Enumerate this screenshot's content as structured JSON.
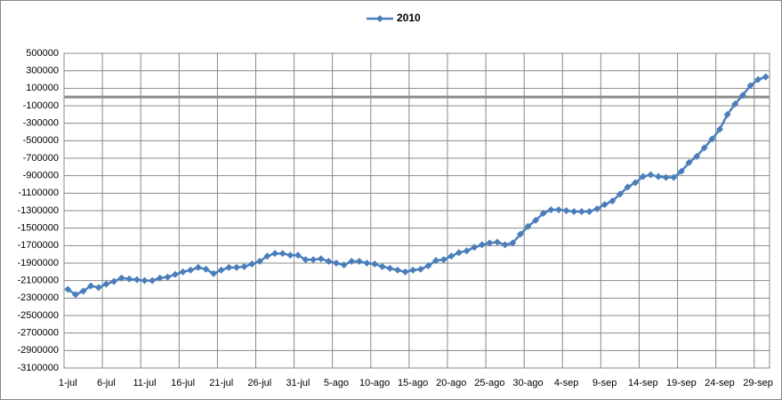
{
  "chart_data": {
    "type": "line",
    "categories": [
      "1-jul",
      null,
      null,
      null,
      null,
      "6-jul",
      null,
      null,
      null,
      null,
      "11-jul",
      null,
      null,
      null,
      null,
      "16-jul",
      null,
      null,
      null,
      null,
      "21-jul",
      null,
      null,
      null,
      null,
      "26-jul",
      null,
      null,
      null,
      null,
      "31-jul",
      null,
      null,
      null,
      null,
      "5-ago",
      null,
      null,
      null,
      null,
      "10-ago",
      null,
      null,
      null,
      null,
      "15-ago",
      null,
      null,
      null,
      null,
      "20-ago",
      null,
      null,
      null,
      null,
      "25-ago",
      null,
      null,
      null,
      null,
      "30-ago",
      null,
      null,
      null,
      null,
      "4-sep",
      null,
      null,
      null,
      null,
      "9-sep",
      null,
      null,
      null,
      null,
      "14-sep",
      null,
      null,
      null,
      null,
      "19-sep",
      null,
      null,
      null,
      null,
      "24-sep",
      null,
      null,
      null,
      null,
      "29-sep",
      null
    ],
    "series": [
      {
        "name": "2010",
        "color": "#4a7ebb",
        "values": [
          -2200000,
          -2260000,
          -2220000,
          -2160000,
          -2180000,
          -2140000,
          -2110000,
          -2070000,
          -2080000,
          -2090000,
          -2100000,
          -2100000,
          -2070000,
          -2060000,
          -2030000,
          -2000000,
          -1980000,
          -1950000,
          -1970000,
          -2020000,
          -1980000,
          -1950000,
          -1950000,
          -1940000,
          -1910000,
          -1880000,
          -1820000,
          -1790000,
          -1790000,
          -1810000,
          -1810000,
          -1860000,
          -1860000,
          -1850000,
          -1880000,
          -1900000,
          -1920000,
          -1880000,
          -1880000,
          -1900000,
          -1910000,
          -1940000,
          -1960000,
          -1980000,
          -2000000,
          -1980000,
          -1970000,
          -1930000,
          -1870000,
          -1860000,
          -1820000,
          -1780000,
          -1760000,
          -1720000,
          -1690000,
          -1670000,
          -1660000,
          -1690000,
          -1670000,
          -1570000,
          -1480000,
          -1410000,
          -1330000,
          -1290000,
          -1290000,
          -1300000,
          -1310000,
          -1310000,
          -1310000,
          -1280000,
          -1230000,
          -1190000,
          -1110000,
          -1030000,
          -980000,
          -910000,
          -890000,
          -910000,
          -920000,
          -920000,
          -850000,
          -750000,
          -680000,
          -580000,
          -480000,
          -370000,
          -200000,
          -80000,
          20000,
          130000,
          200000,
          230000
        ]
      }
    ],
    "ylim": [
      -3100000,
      500000
    ],
    "yticks": [
      500000,
      300000,
      100000,
      -100000,
      -300000,
      -500000,
      -700000,
      -900000,
      -1100000,
      -1300000,
      -1500000,
      -1700000,
      -1900000,
      -2100000,
      -2300000,
      -2500000,
      -2700000,
      -2900000,
      -3100000
    ],
    "grid": true,
    "legend": "top"
  }
}
